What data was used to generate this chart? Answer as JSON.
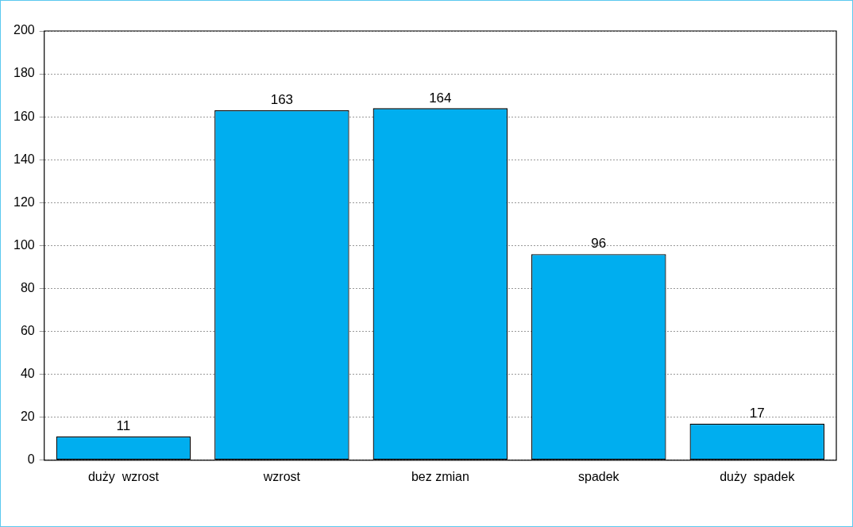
{
  "chart_data": {
    "type": "bar",
    "categories": [
      "duży  wzrost",
      "wzrost",
      "bez zmian",
      "spadek",
      "duży  spadek"
    ],
    "values": [
      11,
      163,
      164,
      96,
      17
    ],
    "color": "#00aeef",
    "ylim": [
      0,
      200
    ],
    "yticks": [
      0,
      20,
      40,
      60,
      80,
      100,
      120,
      140,
      160,
      180,
      200
    ],
    "grid": "y",
    "data_labels": true,
    "legend": false
  }
}
